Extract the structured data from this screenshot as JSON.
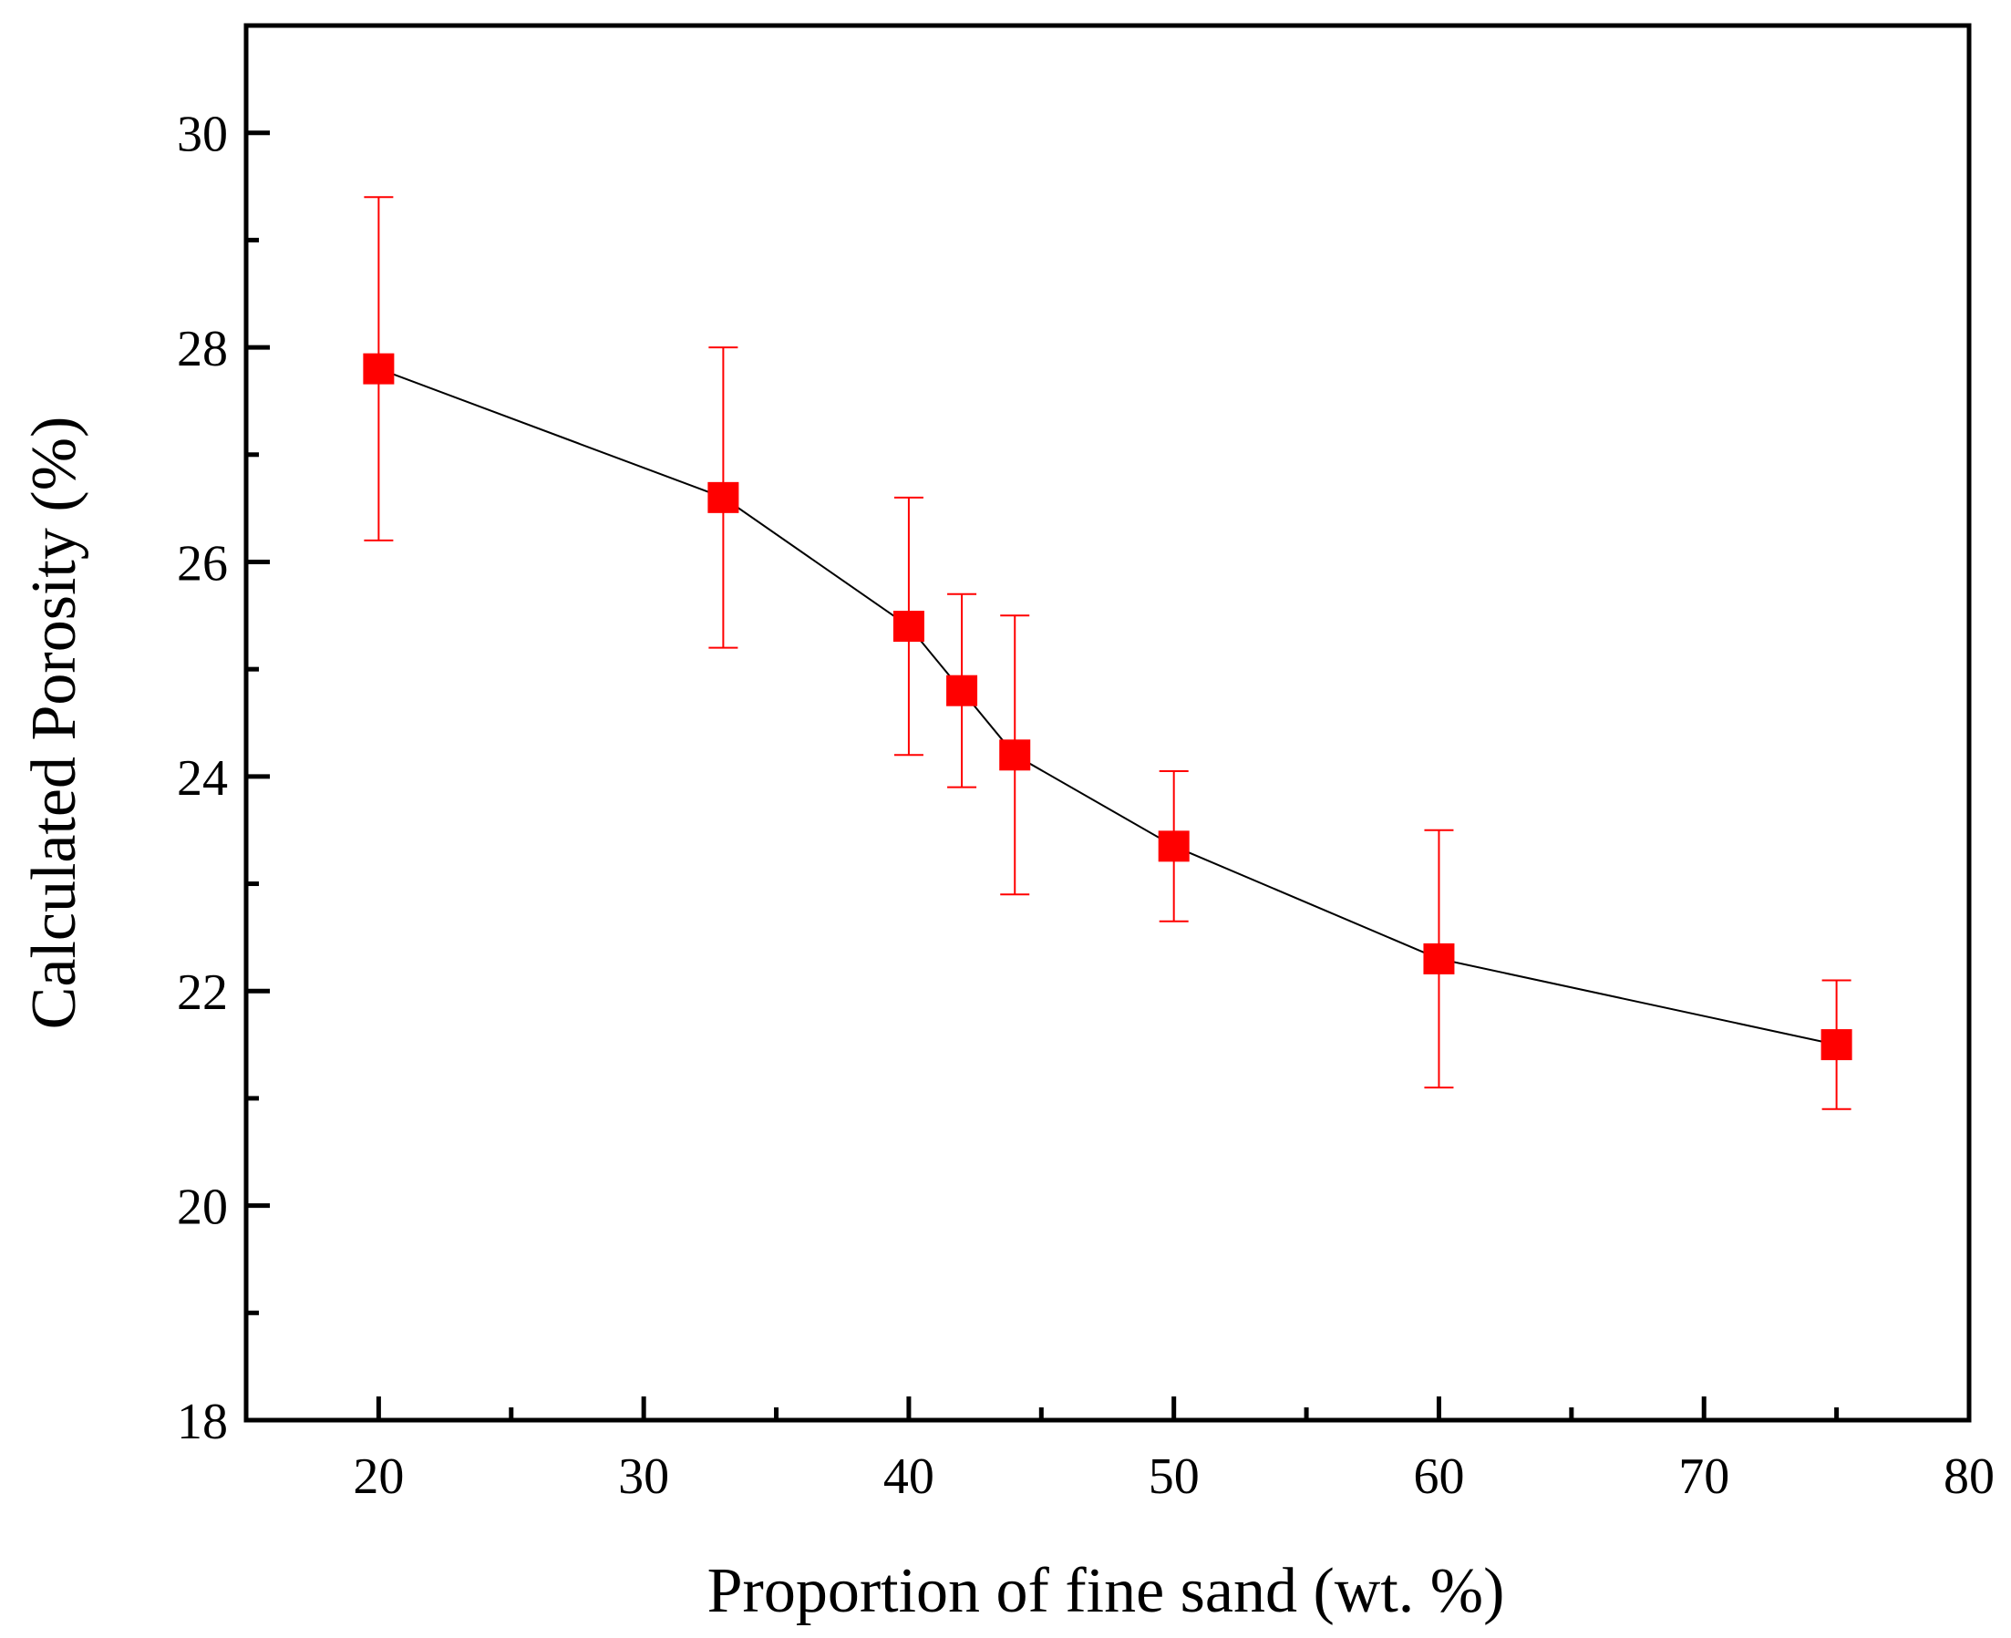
{
  "chart_data": {
    "type": "line",
    "title": "",
    "xlabel": "Proportion of fine sand  (wt. %)",
    "ylabel": "Calculated Porosity (%)",
    "xlim": [
      15,
      80
    ],
    "ylim": [
      18,
      31
    ],
    "x_major_ticks": [
      20,
      30,
      40,
      50,
      60,
      70,
      80
    ],
    "x_minor_ticks": [
      25,
      35,
      45,
      55,
      65,
      75
    ],
    "y_major_ticks": [
      18,
      20,
      22,
      24,
      26,
      28,
      30
    ],
    "y_minor_ticks": [
      19,
      21,
      23,
      25,
      27,
      29
    ],
    "x_tick_labels": [
      "20",
      "30",
      "40",
      "50",
      "60",
      "70",
      "80"
    ],
    "y_tick_labels": [
      "18",
      "20",
      "22",
      "24",
      "26",
      "28",
      "30"
    ],
    "series": [
      {
        "name": "Calculated Porosity",
        "marker": "square",
        "marker_color": "#ff0000",
        "line_color": "#000000",
        "errorbar_color": "#ff0000",
        "points": [
          {
            "x": 20,
            "y": 27.8,
            "err_low": 26.2,
            "err_high": 29.4
          },
          {
            "x": 33,
            "y": 26.6,
            "err_low": 25.2,
            "err_high": 28.0
          },
          {
            "x": 40,
            "y": 25.4,
            "err_low": 24.2,
            "err_high": 26.6
          },
          {
            "x": 42,
            "y": 24.8,
            "err_low": 23.9,
            "err_high": 25.7
          },
          {
            "x": 44,
            "y": 24.2,
            "err_low": 22.9,
            "err_high": 25.5
          },
          {
            "x": 50,
            "y": 23.35,
            "err_low": 22.65,
            "err_high": 24.05
          },
          {
            "x": 60,
            "y": 22.3,
            "err_low": 21.1,
            "err_high": 23.5
          },
          {
            "x": 75,
            "y": 21.5,
            "err_low": 20.9,
            "err_high": 22.1
          }
        ]
      }
    ],
    "grid": false,
    "legend": "none"
  }
}
